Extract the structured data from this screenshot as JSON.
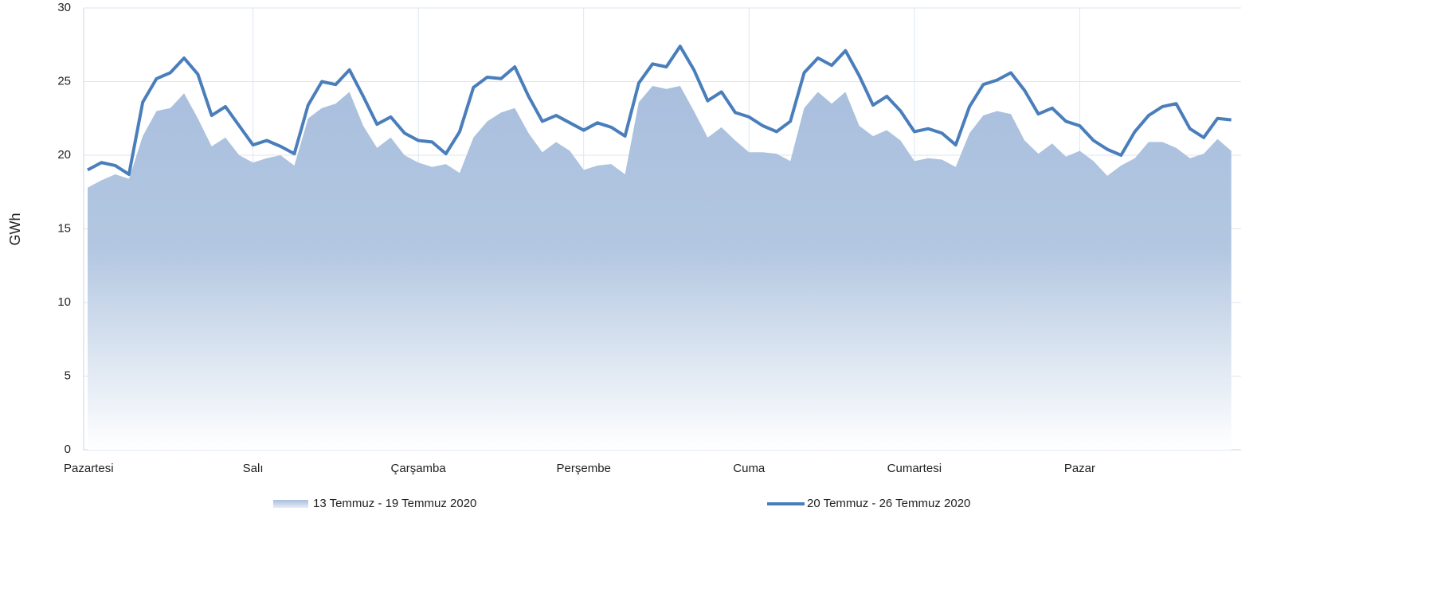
{
  "chart_data": {
    "type": "area_line",
    "y_label": "GWh",
    "categories": [
      "Pazartesi",
      null,
      null,
      null,
      null,
      null,
      null,
      null,
      null,
      null,
      null,
      null,
      "Salı",
      null,
      null,
      null,
      null,
      null,
      null,
      null,
      null,
      null,
      null,
      null,
      "Çarşamba",
      null,
      null,
      null,
      null,
      null,
      null,
      null,
      null,
      null,
      null,
      null,
      "Perşembe",
      null,
      null,
      null,
      null,
      null,
      null,
      null,
      null,
      null,
      null,
      null,
      "Cuma",
      null,
      null,
      null,
      null,
      null,
      null,
      null,
      null,
      null,
      null,
      null,
      "Cumartesi",
      null,
      null,
      null,
      null,
      null,
      null,
      null,
      null,
      null,
      null,
      null,
      "Pazar",
      null,
      null,
      null,
      null,
      null,
      null,
      null,
      null,
      null,
      null,
      null
    ],
    "series": [
      {
        "name": "13 Temmuz - 19 Temmuz 2020",
        "kind": "area",
        "color": "#a9bfdd",
        "values": [
          17.8,
          18.3,
          18.7,
          18.4,
          21.3,
          23.0,
          23.2,
          24.2,
          22.5,
          20.6,
          21.2,
          20.0,
          19.5,
          19.8,
          20.0,
          19.3,
          22.5,
          23.2,
          23.5,
          24.3,
          22.0,
          20.5,
          21.2,
          20.0,
          19.5,
          19.2,
          19.4,
          18.8,
          21.2,
          22.3,
          22.9,
          23.2,
          21.5,
          20.2,
          20.9,
          20.3,
          19.0,
          19.3,
          19.4,
          18.7,
          23.6,
          24.7,
          24.5,
          24.7,
          23.0,
          21.2,
          21.9,
          21.0,
          20.2,
          20.2,
          20.1,
          19.6,
          23.2,
          24.3,
          23.5,
          24.3,
          22.0,
          21.3,
          21.7,
          21.0,
          19.6,
          19.8,
          19.7,
          19.2,
          21.5,
          22.7,
          23.0,
          22.8,
          21.0,
          20.1,
          20.8,
          19.9,
          20.3,
          19.6,
          18.6,
          19.3,
          19.8,
          20.9,
          20.9,
          20.5,
          19.8,
          20.1,
          21.1,
          20.3
        ]
      },
      {
        "name": "20 Temmuz - 26 Temmuz 2020",
        "kind": "line",
        "color": "#4a7ebb",
        "values": [
          19.0,
          19.5,
          19.3,
          18.7,
          23.6,
          25.2,
          25.6,
          26.6,
          25.5,
          22.7,
          23.3,
          22.0,
          20.7,
          21.0,
          20.6,
          20.1,
          23.4,
          25.0,
          24.8,
          25.8,
          24.0,
          22.1,
          22.6,
          21.5,
          21.0,
          20.9,
          20.1,
          21.6,
          24.6,
          25.3,
          25.2,
          26.0,
          24.0,
          22.3,
          22.7,
          22.2,
          21.7,
          22.2,
          21.9,
          21.3,
          24.9,
          26.2,
          26.0,
          27.4,
          25.8,
          23.7,
          24.3,
          22.9,
          22.6,
          22.0,
          21.6,
          22.3,
          25.6,
          26.6,
          26.1,
          27.1,
          25.4,
          23.4,
          24.0,
          23.0,
          21.6,
          21.8,
          21.5,
          20.7,
          23.3,
          24.8,
          25.1,
          25.6,
          24.4,
          22.8,
          23.2,
          22.3,
          22.0,
          21.0,
          20.4,
          20.0,
          21.6,
          22.7,
          23.3,
          23.5,
          21.8,
          21.2,
          22.5,
          22.4
        ]
      }
    ],
    "ylim": [
      0,
      30
    ],
    "yticks": [
      0,
      5,
      10,
      15,
      20,
      25,
      30
    ],
    "grid": true
  }
}
